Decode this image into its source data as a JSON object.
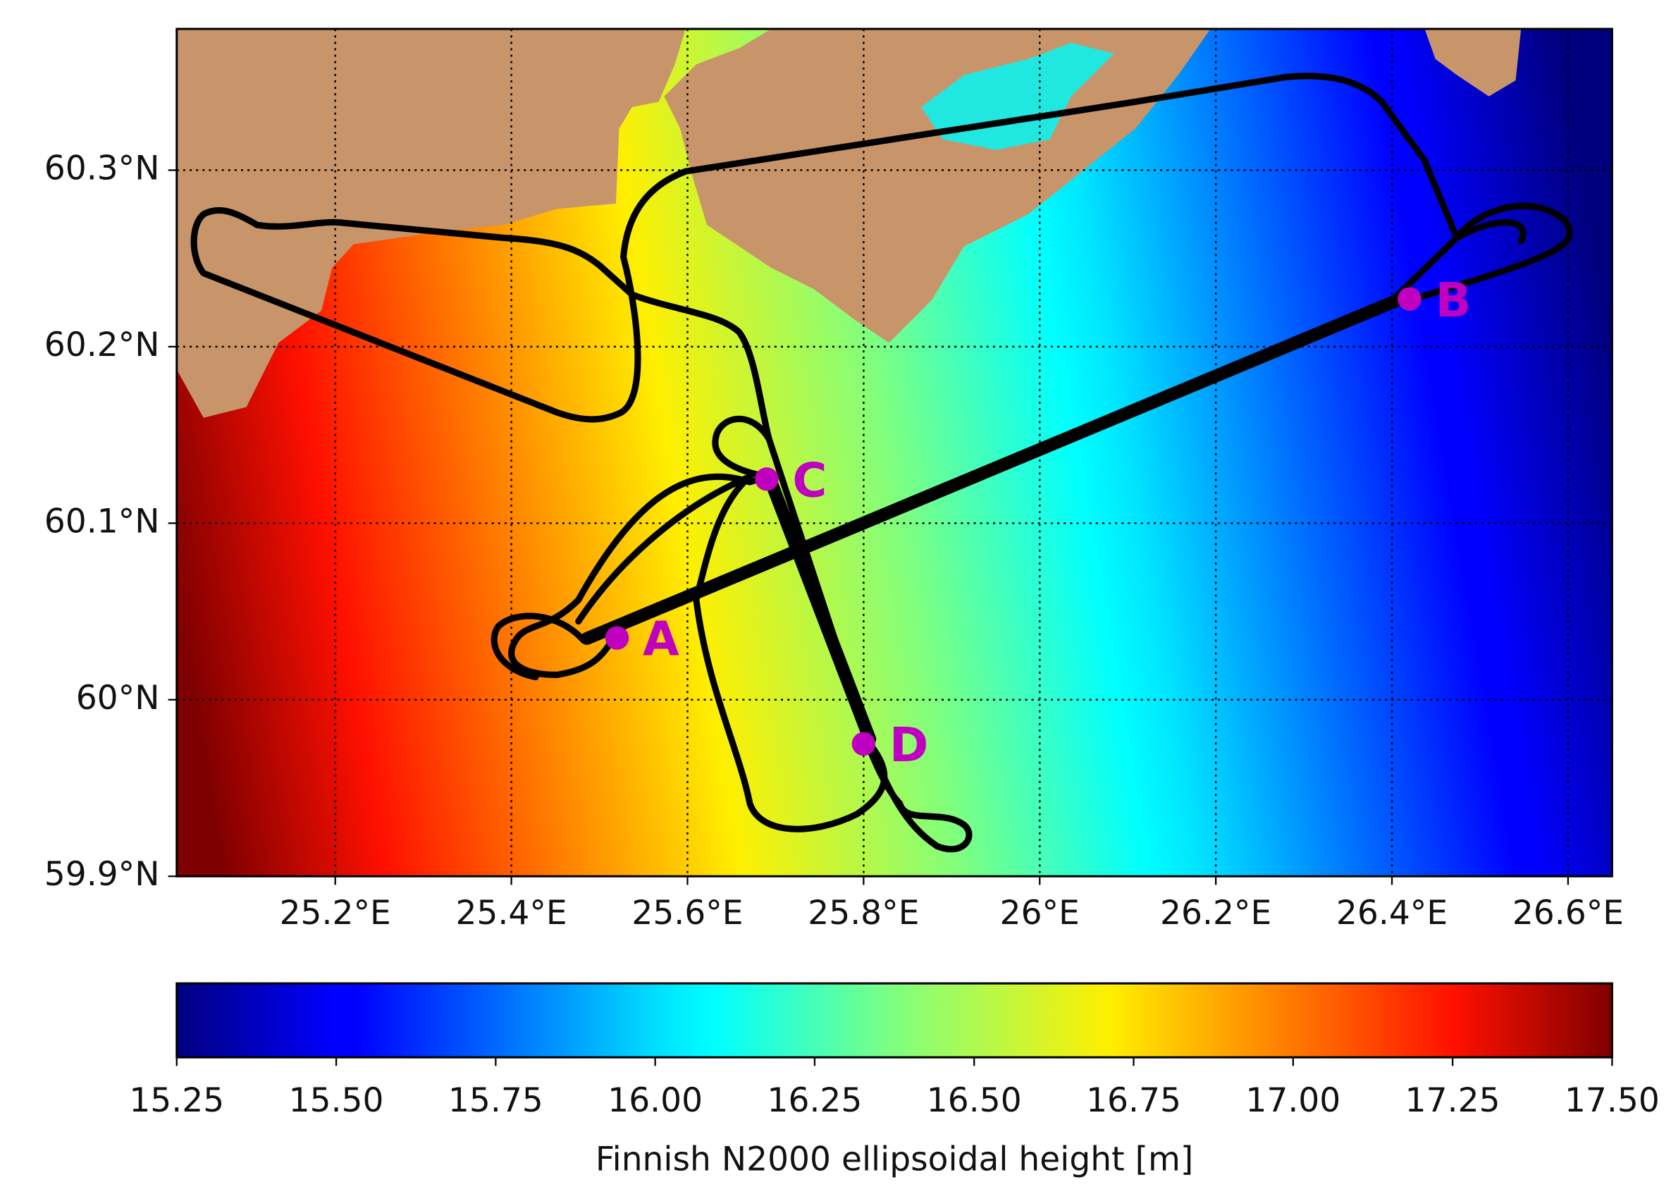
{
  "chart_data": {
    "type": "map",
    "xlim": [
      25.02,
      26.65
    ],
    "ylim": [
      59.9,
      60.38
    ],
    "xticks": [
      {
        "value": 25.2,
        "label": "25.2°E"
      },
      {
        "value": 25.4,
        "label": "25.4°E"
      },
      {
        "value": 25.6,
        "label": "25.6°E"
      },
      {
        "value": 25.8,
        "label": "25.8°E"
      },
      {
        "value": 26,
        "label": "26°E"
      },
      {
        "value": 26.2,
        "label": "26.2°E"
      },
      {
        "value": 26.4,
        "label": "26.4°E"
      },
      {
        "value": 26.6,
        "label": "26.6°E"
      }
    ],
    "yticks": [
      {
        "value": 59.9,
        "label": "59.9°N"
      },
      {
        "value": 60,
        "label": "60°N"
      },
      {
        "value": 60.1,
        "label": "60.1°N"
      },
      {
        "value": 60.2,
        "label": "60.2°N"
      },
      {
        "value": 60.3,
        "label": "60.3°N"
      }
    ],
    "grid": true,
    "point_color": "#c000c0",
    "points": [
      {
        "name": "A",
        "lon": 25.52,
        "lat": 60.035
      },
      {
        "name": "B",
        "lon": 26.42,
        "lat": 60.227
      },
      {
        "name": "C",
        "lon": 25.69,
        "lat": 60.125
      },
      {
        "name": "D",
        "lon": 25.8,
        "lat": 59.975
      }
    ],
    "colorbar": {
      "label": "Finnish N2000 ellipsoidal height [m]",
      "colormap": "jet",
      "lim": [
        15.25,
        17.5
      ],
      "ticks": [
        {
          "value": 15.25,
          "label": "15.25"
        },
        {
          "value": 15.5,
          "label": "15.50"
        },
        {
          "value": 15.75,
          "label": "15.75"
        },
        {
          "value": 16,
          "label": "16.00"
        },
        {
          "value": 16.25,
          "label": "16.25"
        },
        {
          "value": 16.5,
          "label": "16.50"
        },
        {
          "value": 16.75,
          "label": "16.75"
        },
        {
          "value": 17,
          "label": "17.00"
        },
        {
          "value": 17.25,
          "label": "17.25"
        },
        {
          "value": 17.5,
          "label": "17.50"
        }
      ]
    }
  }
}
